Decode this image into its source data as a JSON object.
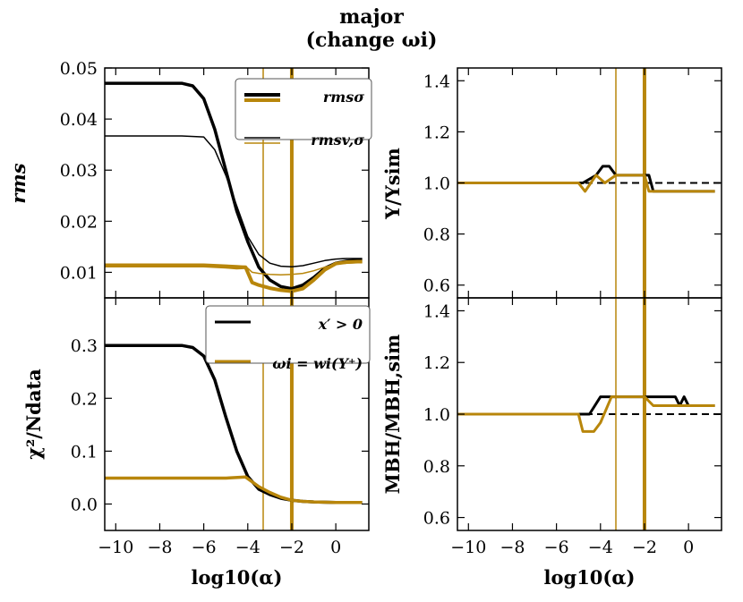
{
  "figure": {
    "title_line1": "major",
    "title_line2": "(change ωi)"
  },
  "colors": {
    "black": "#000000",
    "gold": "#b8860b"
  },
  "chart_data": [
    {
      "id": "rms",
      "type": "line",
      "ylabel": "rms",
      "ylim": [
        0.005,
        0.05
      ],
      "yticks": [
        0.01,
        0.02,
        0.03,
        0.04,
        0.05
      ],
      "ytick_labels": [
        "0.01",
        "0.02",
        "0.03",
        "0.04",
        "0.05"
      ],
      "xlim": [
        -10.5,
        1.5
      ],
      "xticks": [
        -10,
        -8,
        -6,
        -4,
        -2,
        0
      ],
      "show_xtick_labels": false,
      "vlines": [
        {
          "x": -3.3,
          "color": "#b8860b",
          "width": 1.5
        },
        {
          "x": -2.0,
          "color": "#b8860b",
          "width": 4
        }
      ],
      "legend": {
        "position": "top-right",
        "entries": [
          {
            "label": "rmsσ",
            "colors": [
              "#000000",
              "#b8860b"
            ],
            "width": 4
          },
          {
            "label": "rmsv,σ",
            "colors": [
              "#000000",
              "#b8860b"
            ],
            "width": 1.5
          }
        ]
      },
      "series": [
        {
          "color": "#000000",
          "width": 3.5,
          "x": [
            -10.5,
            -7,
            -6.5,
            -6,
            -5.5,
            -5,
            -4.5,
            -4,
            -3.5,
            -3,
            -2.5,
            -2,
            -1.5,
            -1,
            -0.5,
            0,
            0.5,
            1,
            1.2
          ],
          "y": [
            0.047,
            0.047,
            0.0465,
            0.044,
            0.038,
            0.03,
            0.022,
            0.016,
            0.011,
            0.0085,
            0.0072,
            0.0068,
            0.0075,
            0.009,
            0.0108,
            0.0118,
            0.0122,
            0.0124,
            0.0124
          ]
        },
        {
          "color": "#000000",
          "width": 1.5,
          "x": [
            -10.5,
            -7,
            -6,
            -5.5,
            -5,
            -4.5,
            -4,
            -3.5,
            -3,
            -2.5,
            -2,
            -1.5,
            -1,
            -0.5,
            0,
            0.5,
            1,
            1.2
          ],
          "y": [
            0.0367,
            0.0367,
            0.0365,
            0.034,
            0.029,
            0.023,
            0.017,
            0.0135,
            0.0118,
            0.0112,
            0.0111,
            0.0113,
            0.0118,
            0.0123,
            0.0126,
            0.0127,
            0.0127,
            0.0127
          ]
        },
        {
          "color": "#b8860b",
          "width": 4,
          "x": [
            -10.5,
            -7,
            -6,
            -5,
            -4.5,
            -4.1,
            -3.8,
            -3.5,
            -3,
            -2.5,
            -2,
            -1.5,
            -1,
            -0.5,
            0,
            0.5,
            1,
            1.2
          ],
          "y": [
            0.0113,
            0.0113,
            0.0113,
            0.0111,
            0.0109,
            0.011,
            0.008,
            0.0075,
            0.0069,
            0.0065,
            0.0063,
            0.0068,
            0.0085,
            0.0105,
            0.0117,
            0.012,
            0.0121,
            0.0121
          ]
        },
        {
          "color": "#b8860b",
          "width": 1.5,
          "x": [
            -10.5,
            -7,
            -6,
            -5,
            -4.5,
            -4.1,
            -3.8,
            -3.5,
            -3,
            -2.5,
            -2,
            -1.5,
            -1,
            -0.5,
            0,
            0.5,
            1,
            1.2
          ],
          "y": [
            0.0116,
            0.0116,
            0.0116,
            0.0114,
            0.0113,
            0.0112,
            0.01,
            0.0098,
            0.0096,
            0.0095,
            0.0096,
            0.0098,
            0.0103,
            0.011,
            0.0116,
            0.0118,
            0.0119,
            0.0119
          ]
        }
      ]
    },
    {
      "id": "chi2",
      "type": "line",
      "ylabel": "χ²/Ndata",
      "ylim": [
        -0.05,
        0.39
      ],
      "yticks": [
        0.0,
        0.1,
        0.2,
        0.3
      ],
      "ytick_labels": [
        "0.0",
        "0.1",
        "0.2",
        "0.3"
      ],
      "xlim": [
        -10.5,
        1.5
      ],
      "xticks": [
        -10,
        -8,
        -6,
        -4,
        -2,
        0
      ],
      "xtick_labels": [
        "−10",
        "−8",
        "−6",
        "−4",
        "−2",
        "0"
      ],
      "show_xtick_labels": true,
      "xlabel": "log10(α)",
      "vlines": [
        {
          "x": -3.3,
          "color": "#b8860b",
          "width": 1.5
        },
        {
          "x": -2.0,
          "color": "#b8860b",
          "width": 4
        }
      ],
      "legend": {
        "position": "top-right",
        "entries": [
          {
            "label": "x′ > 0",
            "colors": [
              "#000000"
            ],
            "width": 3
          },
          {
            "label": "ωi = wi(Y⁺)",
            "colors": [
              "#b8860b"
            ],
            "width": 3
          }
        ]
      },
      "series": [
        {
          "color": "#000000",
          "width": 3.5,
          "x": [
            -10.5,
            -7,
            -6.5,
            -6,
            -5.5,
            -5,
            -4.5,
            -4,
            -3.5,
            -3,
            -2.5,
            -2,
            -1.5,
            -1,
            0,
            1,
            1.2
          ],
          "y": [
            0.3,
            0.3,
            0.296,
            0.28,
            0.235,
            0.165,
            0.1,
            0.052,
            0.028,
            0.018,
            0.011,
            0.007,
            0.005,
            0.004,
            0.003,
            0.003,
            0.003
          ]
        },
        {
          "color": "#b8860b",
          "width": 3.5,
          "x": [
            -10.5,
            -7,
            -5,
            -4.1,
            -3.5,
            -3,
            -2.5,
            -2,
            -1.5,
            -1,
            0,
            1,
            1.2
          ],
          "y": [
            0.049,
            0.049,
            0.049,
            0.051,
            0.033,
            0.022,
            0.013,
            0.007,
            0.005,
            0.004,
            0.003,
            0.003,
            0.003
          ]
        }
      ]
    },
    {
      "id": "upsilon",
      "type": "line",
      "ylabel": "Υ/Υsim",
      "ylim": [
        0.55,
        1.45
      ],
      "yticks": [
        0.6,
        0.8,
        1.0,
        1.2,
        1.4
      ],
      "ytick_labels": [
        "0.6",
        "0.8",
        "1.0",
        "1.2",
        "1.4"
      ],
      "xlim": [
        -10.5,
        1.5
      ],
      "xticks": [
        -10,
        -8,
        -6,
        -4,
        -2,
        0
      ],
      "show_xtick_labels": false,
      "hline": 1.0,
      "vlines": [
        {
          "x": -3.3,
          "color": "#b8860b",
          "width": 1.5
        },
        {
          "x": -2.0,
          "color": "#b8860b",
          "width": 4
        }
      ],
      "series": [
        {
          "color": "#000000",
          "width": 3,
          "x": [
            -10.5,
            -5.2,
            -4.8,
            -4.2,
            -3.9,
            -3.6,
            -3.3,
            -2.4,
            -2.0,
            -1.8,
            -1.6,
            1.2
          ],
          "y": [
            1.0,
            1.0,
            1.0,
            1.03,
            1.065,
            1.065,
            1.03,
            1.03,
            1.03,
            1.03,
            0.967,
            0.967
          ]
        },
        {
          "color": "#b8860b",
          "width": 3,
          "x": [
            -10.5,
            -5.0,
            -4.7,
            -4.2,
            -3.8,
            -3.3,
            -2.0,
            -1.8,
            1.2
          ],
          "y": [
            1.0,
            1.0,
            0.967,
            1.03,
            1.0,
            1.03,
            1.03,
            0.967,
            0.967
          ]
        }
      ]
    },
    {
      "id": "mbh",
      "type": "line",
      "ylabel": "MBH/MBH,sim",
      "ylim": [
        0.55,
        1.45
      ],
      "yticks": [
        0.6,
        0.8,
        1.0,
        1.2,
        1.4
      ],
      "ytick_labels": [
        "0.6",
        "0.8",
        "1.0",
        "1.2",
        "1.4"
      ],
      "xlim": [
        -10.5,
        1.5
      ],
      "xticks": [
        -10,
        -8,
        -6,
        -4,
        -2,
        0
      ],
      "xtick_labels": [
        "−10",
        "−8",
        "−6",
        "−4",
        "−2",
        "0"
      ],
      "show_xtick_labels": true,
      "xlabel": "log10(α)",
      "hline": 1.0,
      "vlines": [
        {
          "x": -3.3,
          "color": "#b8860b",
          "width": 1.5
        },
        {
          "x": -2.0,
          "color": "#b8860b",
          "width": 4
        }
      ],
      "series": [
        {
          "color": "#000000",
          "width": 3,
          "x": [
            -10.5,
            -4.5,
            -4.0,
            -3.2,
            -2.0,
            -1.6,
            -0.6,
            -0.4,
            -0.2,
            0,
            1.2
          ],
          "y": [
            1.0,
            1.0,
            1.067,
            1.067,
            1.067,
            1.067,
            1.067,
            1.033,
            1.067,
            1.033,
            1.033
          ]
        },
        {
          "color": "#b8860b",
          "width": 3,
          "x": [
            -10.5,
            -5.0,
            -4.8,
            -4.3,
            -4.0,
            -3.5,
            -2.0,
            -1.6,
            1.2
          ],
          "y": [
            1.0,
            1.0,
            0.933,
            0.933,
            0.967,
            1.067,
            1.067,
            1.033,
            1.033
          ]
        }
      ]
    }
  ]
}
